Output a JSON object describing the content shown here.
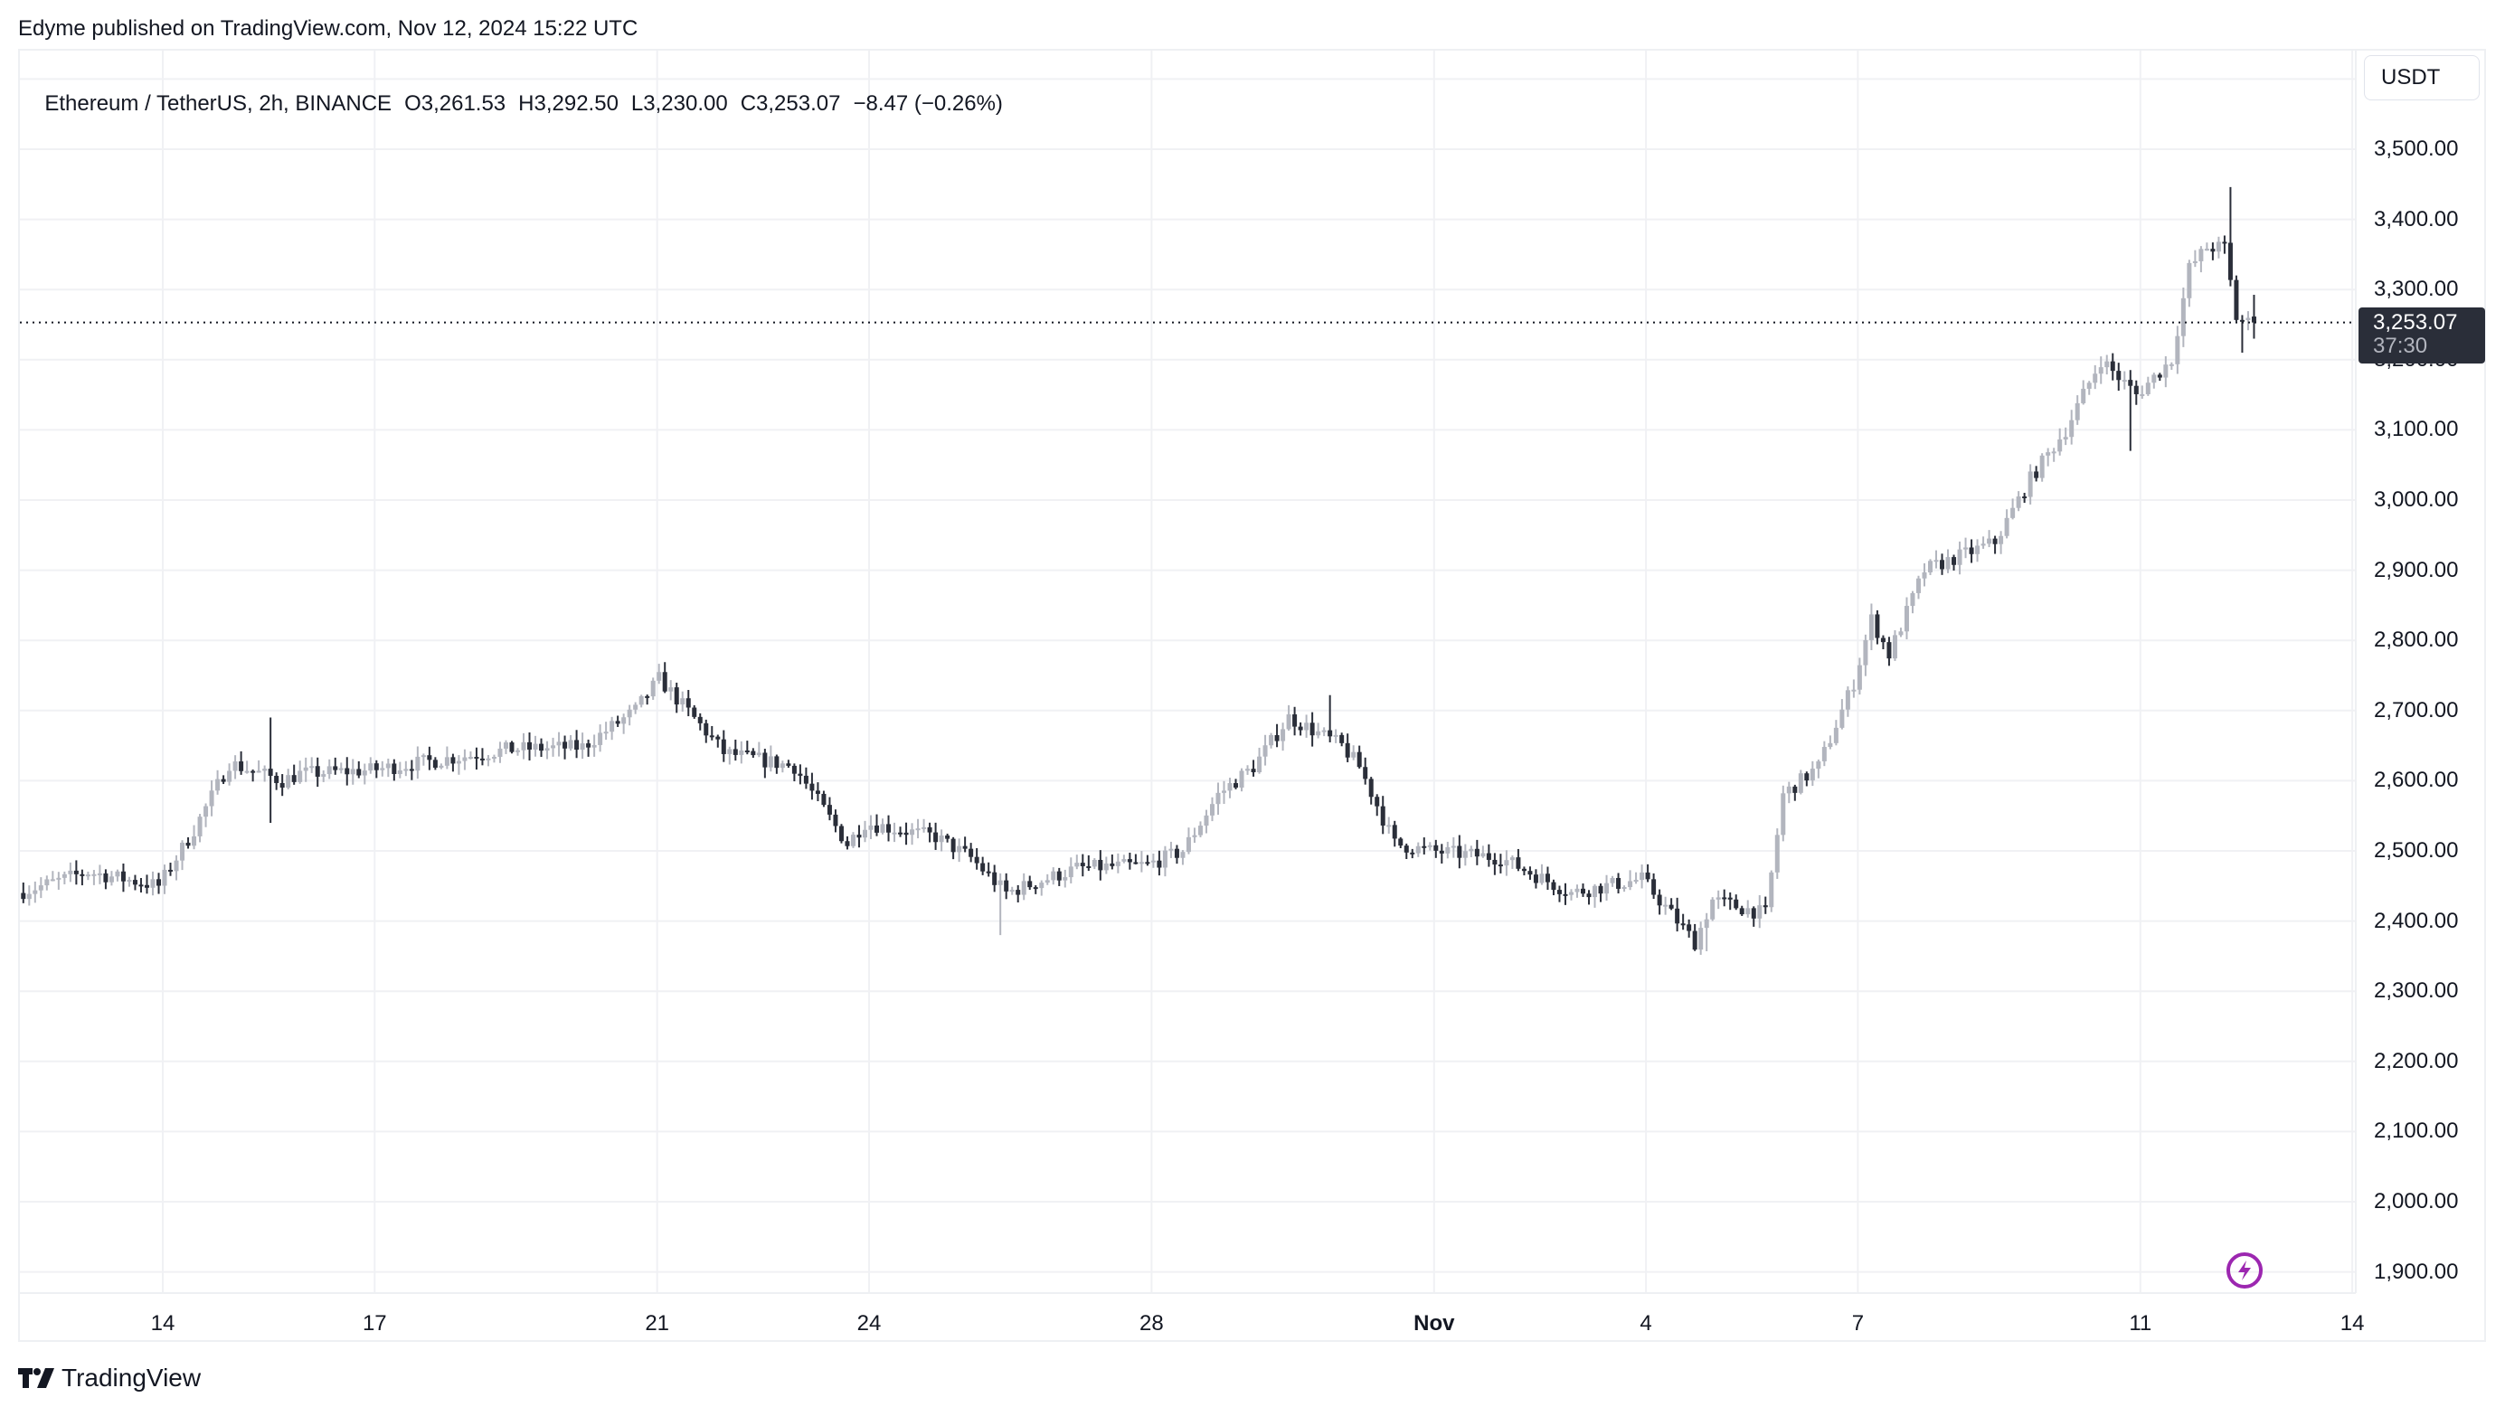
{
  "header": {
    "publisher_line": "Edyme published on TradingView.com, Nov 12, 2024 15:22 UTC"
  },
  "legend": {
    "symbol": "Ethereum / TetherUS, 2h, BINANCE",
    "open": "O3,261.53",
    "high": "H3,292.50",
    "low": "L3,230.00",
    "close": "C3,253.07",
    "change": "−8.47 (−0.26%)"
  },
  "price_axis": {
    "unit_button": "USDT",
    "last_price": "3,253.07",
    "countdown": "37:30"
  },
  "footer": {
    "brand": "TradingView"
  },
  "colors": {
    "up_candle": "#b2b5be",
    "down_candle": "#2a2e39",
    "grid": "#f0f1f4",
    "frame": "#eef0f3",
    "last_price_bg": "#2a2e39",
    "bolt_icon": "#9c27b0"
  },
  "icons": {
    "bolt": "lightning-bolt-icon",
    "logo": "tradingview-logo-icon"
  },
  "chart_data": {
    "type": "candlestick",
    "title": "Ethereum / TetherUS, 2h, BINANCE",
    "xlabel": "",
    "ylabel": "USDT",
    "ylim": [
      1850,
      3620
    ],
    "y_ticks": [
      "3,500.00",
      "3,400.00",
      "3,300.00",
      "3,200.00",
      "3,100.00",
      "3,000.00",
      "2,900.00",
      "2,800.00",
      "2,700.00",
      "2,600.00",
      "2,500.00",
      "2,400.00",
      "2,300.00",
      "2,200.00",
      "2,100.00",
      "2,000.00",
      "1,900.00"
    ],
    "x_ticks": [
      "14",
      "17",
      "21",
      "24",
      "28",
      "Nov",
      "4",
      "7",
      "11",
      "14"
    ],
    "x_tick_days_from_oct14": [
      0,
      3,
      7,
      10,
      14,
      18,
      21,
      24,
      28,
      31
    ],
    "grid": true,
    "last_price": 3253.07,
    "last_ohlc": {
      "open": 3261.53,
      "high": 3292.5,
      "low": 3230.0,
      "close": 3253.07,
      "change": -8.47,
      "change_pct": -0.26
    },
    "interval": "2h",
    "series_anchor_closes": [
      {
        "date": "Oct 12",
        "close": 2440
      },
      {
        "date": "Oct 13",
        "close": 2470
      },
      {
        "date": "Oct 14 00:00",
        "close": 2450
      },
      {
        "date": "Oct 14 12:00",
        "close": 2530
      },
      {
        "date": "Oct 15 00:00",
        "close": 2625
      },
      {
        "date": "Oct 15 18:00",
        "close": 2600
      },
      {
        "date": "Oct 16 00:00",
        "close": 2610
      },
      {
        "date": "Oct 17",
        "close": 2615
      },
      {
        "date": "Oct 18",
        "close": 2630
      },
      {
        "date": "Oct 19",
        "close": 2645
      },
      {
        "date": "Oct 20",
        "close": 2648
      },
      {
        "date": "Oct 20 18:00",
        "close": 2700
      },
      {
        "date": "Oct 21 02:00",
        "close": 2745
      },
      {
        "date": "Oct 21 18:00",
        "close": 2670
      },
      {
        "date": "Oct 22",
        "close": 2640
      },
      {
        "date": "Oct 23",
        "close": 2620
      },
      {
        "date": "Oct 23 18:00",
        "close": 2510
      },
      {
        "date": "Oct 24",
        "close": 2540
      },
      {
        "date": "Oct 25",
        "close": 2520
      },
      {
        "date": "Oct 25 12:00",
        "close": 2490
      },
      {
        "date": "Oct 26",
        "close": 2440
      },
      {
        "date": "Oct 27",
        "close": 2475
      },
      {
        "date": "Oct 28",
        "close": 2480
      },
      {
        "date": "Oct 28 12:00",
        "close": 2500
      },
      {
        "date": "Oct 29",
        "close": 2580
      },
      {
        "date": "Oct 29 12:00",
        "close": 2620
      },
      {
        "date": "Oct 30",
        "close": 2690
      },
      {
        "date": "Oct 30 18:00",
        "close": 2650
      },
      {
        "date": "Oct 31",
        "close": 2620
      },
      {
        "date": "Oct 31 12:00",
        "close": 2510
      },
      {
        "date": "Nov 1",
        "close": 2500
      },
      {
        "date": "Nov 2",
        "close": 2490
      },
      {
        "date": "Nov 3",
        "close": 2440
      },
      {
        "date": "Nov 4",
        "close": 2460
      },
      {
        "date": "Nov 4 18:00",
        "close": 2370
      },
      {
        "date": "Nov 5",
        "close": 2430
      },
      {
        "date": "Nov 5 18:00",
        "close": 2410
      },
      {
        "date": "Nov 6",
        "close": 2580
      },
      {
        "date": "Nov 6 12:00",
        "close": 2620
      },
      {
        "date": "Nov 7 00:00",
        "close": 2740
      },
      {
        "date": "Nov 7 06:00",
        "close": 2830
      },
      {
        "date": "Nov 7 12:00",
        "close": 2780
      },
      {
        "date": "Nov 8",
        "close": 2900
      },
      {
        "date": "Nov 9",
        "close": 2940
      },
      {
        "date": "Nov 9 12:00",
        "close": 3030
      },
      {
        "date": "Nov 10",
        "close": 3100
      },
      {
        "date": "Nov 10 12:00",
        "close": 3200
      },
      {
        "date": "Nov 11 00:00",
        "close": 3150
      },
      {
        "date": "Nov 11 12:00",
        "close": 3200
      },
      {
        "date": "Nov 11 18:00",
        "close": 3330
      },
      {
        "date": "Nov 12 00:00",
        "close": 3360
      },
      {
        "date": "Nov 12 06:00",
        "close": 3360
      },
      {
        "date": "Nov 12 10:00",
        "close": 3260
      },
      {
        "date": "Nov 12 14:00",
        "close": 3253.07
      }
    ],
    "notable_extremes": [
      {
        "date": "Oct 15 12:00",
        "high": 2690,
        "low": 2540
      },
      {
        "date": "Oct 21 02:00",
        "high": 2769
      },
      {
        "date": "Oct 25 20:00",
        "low": 2380
      },
      {
        "date": "Oct 30 12:00",
        "high": 2722
      },
      {
        "date": "Nov 4 20:00",
        "low": 2357
      },
      {
        "date": "Nov 10 20:00",
        "low": 3070
      },
      {
        "date": "Nov 12 06:00",
        "high": 3446
      },
      {
        "date": "Nov 12 10:00",
        "low": 3210
      }
    ]
  }
}
